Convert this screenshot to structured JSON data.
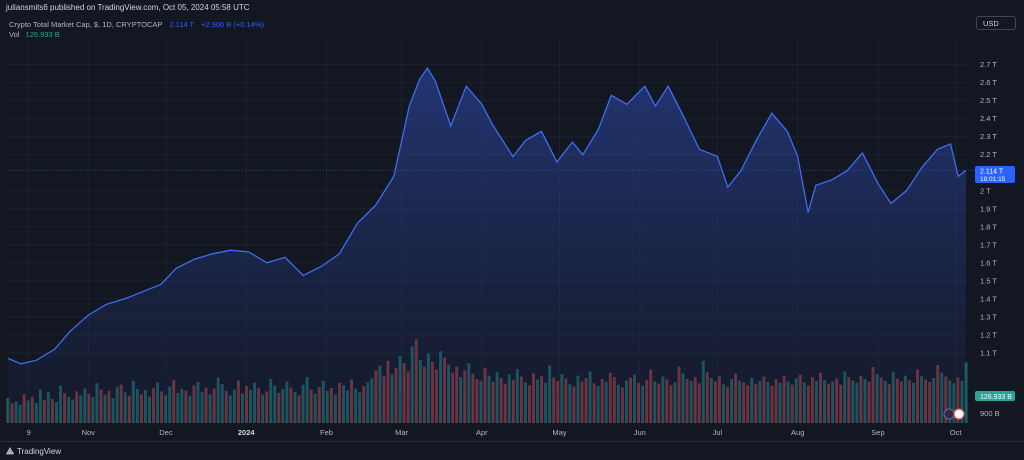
{
  "header": {
    "published": "juliansmits6 published on TradingView.com, Oct 05, 2024 05:58 UTC",
    "symbol": "Crypto Total Market Cap, $, 1D, CRYPTOCAP",
    "last_value": "2.114 T",
    "change": "+2.906 B (+0.14%)",
    "vol_label": "Vol",
    "vol_value": "126.933 B",
    "currency_button": "USD"
  },
  "price_label": {
    "value": "2.114 T",
    "countdown": "18:01:15"
  },
  "vol_badge": "126.933 B",
  "footer": {
    "brand": "TradingView",
    "logo": "tradingview-logo-icon"
  },
  "colors": {
    "line": "#3d6df2",
    "up": "#26a69a",
    "down": "#ef5350",
    "background": "#131722",
    "accent": "#2962ff"
  },
  "chart_data": {
    "type": "area",
    "title": "Crypto Total Market Cap, $, 1D, CRYPTOCAP",
    "ylabel": "USD",
    "y_unit": "T",
    "yticks": [
      2.7,
      2.6,
      2.5,
      2.4,
      2.3,
      2.2,
      2.0,
      1.9,
      1.8,
      1.7,
      1.6,
      1.5,
      1.4,
      1.3,
      1.2,
      1.1
    ],
    "ytick_labels": [
      "2.7 T",
      "2.6 T",
      "2.5 T",
      "2.4 T",
      "2.3 T",
      "2.2 T",
      "2 T",
      "1.9 T",
      "1.8 T",
      "1.7 T",
      "1.6 T",
      "1.5 T",
      "1.4 T",
      "1.3 T",
      "1.2 T",
      "1.1 T"
    ],
    "volume_tick_label": "900 B",
    "x_ticks": [
      "9",
      "Nov",
      "Dec",
      "2024",
      "Feb",
      "Mar",
      "Apr",
      "May",
      "Jun",
      "Jul",
      "Aug",
      "Sep",
      "Oct"
    ],
    "x_tick_dates": [
      "2023-10-09",
      "2023-11-01",
      "2023-12-01",
      "2024-01-01",
      "2024-02-01",
      "2024-03-01",
      "2024-04-01",
      "2024-05-01",
      "2024-06-01",
      "2024-07-01",
      "2024-08-01",
      "2024-09-01",
      "2024-10-01"
    ],
    "x_range": [
      "2023-10-01",
      "2024-10-05"
    ],
    "ylim": [
      0.85,
      2.82
    ],
    "grid": true,
    "series": [
      {
        "name": "Total market cap",
        "x": [
          "2023-10-01",
          "2023-10-06",
          "2023-10-12",
          "2023-10-19",
          "2023-10-25",
          "2023-11-01",
          "2023-11-08",
          "2023-11-15",
          "2023-11-22",
          "2023-11-29",
          "2023-12-05",
          "2023-12-12",
          "2023-12-19",
          "2023-12-26",
          "2024-01-02",
          "2024-01-09",
          "2024-01-16",
          "2024-01-23",
          "2024-01-30",
          "2024-02-06",
          "2024-02-13",
          "2024-02-20",
          "2024-02-27",
          "2024-03-04",
          "2024-03-08",
          "2024-03-11",
          "2024-03-14",
          "2024-03-20",
          "2024-03-26",
          "2024-04-01",
          "2024-04-05",
          "2024-04-13",
          "2024-04-18",
          "2024-04-24",
          "2024-04-30",
          "2024-05-06",
          "2024-05-10",
          "2024-05-16",
          "2024-05-21",
          "2024-05-27",
          "2024-06-03",
          "2024-06-07",
          "2024-06-12",
          "2024-06-18",
          "2024-06-24",
          "2024-07-01",
          "2024-07-05",
          "2024-07-10",
          "2024-07-16",
          "2024-07-22",
          "2024-07-28",
          "2024-08-01",
          "2024-08-05",
          "2024-08-08",
          "2024-08-14",
          "2024-08-20",
          "2024-08-26",
          "2024-09-01",
          "2024-09-06",
          "2024-09-12",
          "2024-09-18",
          "2024-09-24",
          "2024-09-29",
          "2024-10-02",
          "2024-10-05"
        ],
        "values": [
          1.07,
          1.04,
          1.06,
          1.12,
          1.22,
          1.31,
          1.37,
          1.4,
          1.44,
          1.48,
          1.57,
          1.62,
          1.65,
          1.67,
          1.66,
          1.6,
          1.63,
          1.53,
          1.58,
          1.65,
          1.82,
          1.92,
          2.08,
          2.47,
          2.62,
          2.68,
          2.61,
          2.36,
          2.58,
          2.48,
          2.37,
          2.19,
          2.28,
          2.33,
          2.16,
          2.27,
          2.2,
          2.34,
          2.53,
          2.48,
          2.58,
          2.47,
          2.58,
          2.41,
          2.23,
          2.19,
          2.02,
          2.11,
          2.28,
          2.43,
          2.33,
          2.19,
          1.88,
          2.03,
          2.06,
          2.11,
          2.21,
          2.04,
          1.93,
          2.0,
          2.13,
          2.23,
          2.26,
          2.08,
          2.114
        ]
      }
    ],
    "volume": {
      "unit": "B",
      "x_range": [
        "2023-10-01",
        "2024-10-05"
      ],
      "last_value": 126.933,
      "values": [
        52,
        41,
        45,
        38,
        60,
        47,
        55,
        42,
        70,
        48,
        65,
        50,
        44,
        78,
        62,
        55,
        49,
        66,
        58,
        72,
        61,
        54,
        83,
        70,
        59,
        67,
        52,
        75,
        80,
        64,
        57,
        88,
        71,
        60,
        69,
        55,
        73,
        85,
        66,
        58,
        76,
        90,
        63,
        71,
        68,
        57,
        79,
        86,
        65,
        74,
        60,
        72,
        95,
        81,
        67,
        58,
        70,
        89,
        62,
        77,
        69,
        84,
        73,
        59,
        66,
        92,
        78,
        63,
        71,
        87,
        74,
        65,
        58,
        80,
        96,
        70,
        62,
        75,
        88,
        67,
        73,
        60,
        84,
        79,
        68,
        91,
        72,
        64,
        77,
        85,
        93,
        110,
        120,
        98,
        130,
        102,
        115,
        140,
        125,
        108,
        160,
        175,
        132,
        118,
        145,
        128,
        112,
        150,
        137,
        122,
        105,
        118,
        96,
        110,
        125,
        103,
        92,
        88,
        115,
        99,
        86,
        107,
        94,
        82,
        101,
        90,
        113,
        97,
        85,
        79,
        104,
        91,
        98,
        84,
        120,
        95,
        88,
        102,
        93,
        81,
        76,
        99,
        87,
        94,
        108,
        83,
        77,
        92,
        86,
        105,
        96,
        80,
        74,
        89,
        95,
        101,
        84,
        78,
        90,
        112,
        87,
        82,
        97,
        91,
        79,
        85,
        118,
        104,
        92,
        88,
        96,
        83,
        130,
        106,
        94,
        87,
        98,
        81,
        76,
        92,
        103,
        89,
        85,
        79,
        94,
        82,
        88,
        97,
        86,
        78,
        91,
        84,
        99,
        87,
        80,
        93,
        101,
        85,
        78,
        96,
        88,
        105,
        90,
        82,
        87,
        93,
        80,
        108,
        96,
        89,
        84,
        98,
        92,
        86,
        117,
        102,
        95,
        88,
        81,
        107,
        93,
        87,
        99,
        90,
        84,
        112,
        98,
        91,
        86,
        94,
        121,
        105,
        97,
        89,
        83,
        95,
        88,
        126.9
      ],
      "colors": [
        "u",
        "d",
        "u",
        "u",
        "d",
        "u",
        "d",
        "u",
        "u",
        "d",
        "u",
        "d",
        "u",
        "u",
        "d",
        "u",
        "u",
        "d",
        "u",
        "u",
        "d",
        "u",
        "u",
        "d",
        "u",
        "d",
        "u",
        "u",
        "d",
        "u",
        "d",
        "u",
        "u",
        "d",
        "u",
        "u",
        "d",
        "u",
        "d",
        "u",
        "u",
        "d",
        "u",
        "u",
        "d",
        "u",
        "d",
        "u",
        "u",
        "d",
        "u",
        "d",
        "u",
        "u",
        "d",
        "u",
        "u",
        "d",
        "u",
        "d",
        "u",
        "u",
        "d",
        "u",
        "d",
        "u",
        "u",
        "d",
        "u",
        "u",
        "d",
        "u",
        "d",
        "u",
        "u",
        "d",
        "u",
        "d",
        "u",
        "u",
        "d",
        "u",
        "d",
        "u",
        "u",
        "d",
        "u",
        "u",
        "d",
        "u",
        "u",
        "d",
        "u",
        "d",
        "d",
        "u",
        "d",
        "u",
        "d",
        "d",
        "u",
        "d",
        "u",
        "d",
        "u",
        "d",
        "d",
        "u",
        "d",
        "u",
        "d",
        "d",
        "u",
        "d",
        "u",
        "d",
        "d",
        "u",
        "d",
        "u",
        "d",
        "u",
        "d",
        "d",
        "u",
        "d",
        "u",
        "d",
        "u",
        "d",
        "d",
        "u",
        "d",
        "u",
        "u",
        "d",
        "d",
        "u",
        "d",
        "u",
        "d",
        "u",
        "d",
        "d",
        "u",
        "d",
        "u",
        "d",
        "u",
        "d",
        "d",
        "u",
        "d",
        "u",
        "d",
        "u",
        "d",
        "u",
        "d",
        "d",
        "u",
        "d",
        "u",
        "d",
        "d",
        "u",
        "d",
        "u",
        "d",
        "u",
        "d",
        "d",
        "u",
        "d",
        "u",
        "d",
        "d",
        "u",
        "d",
        "u",
        "d",
        "u",
        "d",
        "d",
        "u",
        "d",
        "u",
        "d",
        "u",
        "d",
        "d",
        "u",
        "d",
        "u",
        "d",
        "u",
        "d",
        "u",
        "d",
        "d",
        "u",
        "d",
        "u",
        "d",
        "u",
        "d",
        "d",
        "u",
        "d",
        "u",
        "u",
        "d",
        "u",
        "d",
        "d",
        "u",
        "d",
        "u",
        "d",
        "u",
        "d",
        "d",
        "u",
        "d",
        "u",
        "d",
        "u",
        "d",
        "d",
        "u",
        "d",
        "u",
        "d",
        "u"
      ]
    }
  }
}
